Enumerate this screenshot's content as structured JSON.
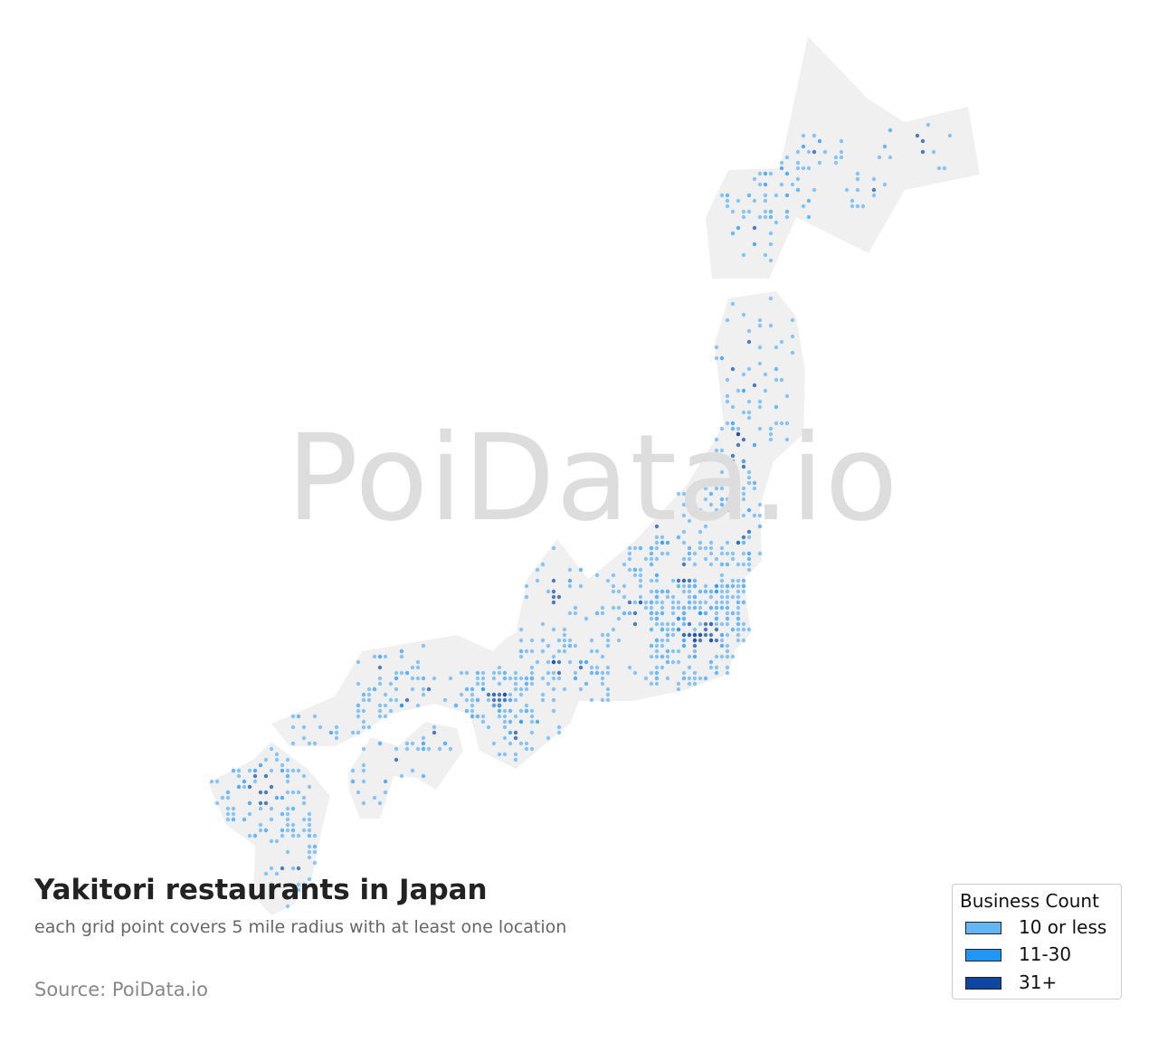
{
  "title": "Yakitori restaurants in Japan",
  "subtitle": "each grid point covers 5 mile radius with at least one location",
  "source": "Source: PoiData.io",
  "watermark": "PoiData.io",
  "colors": {
    "land": "#f0f0f0",
    "low": "#64b5f6",
    "mid": "#2196f3",
    "high": "#0d47a1"
  },
  "legend": {
    "title": "Business Count",
    "items": [
      {
        "label": "10 or less",
        "color": "#64b5f6"
      },
      {
        "label": "11-30",
        "color": "#2196f3"
      },
      {
        "label": "31+",
        "color": "#0d47a1"
      }
    ]
  }
}
